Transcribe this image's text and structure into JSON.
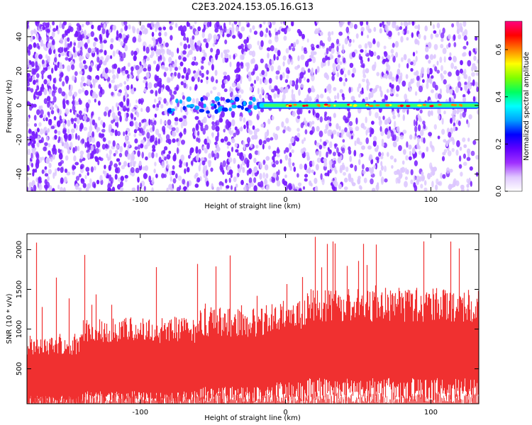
{
  "title": "C2E3.2024.153.05.16.G13",
  "chart_data": [
    {
      "type": "heatmap",
      "xlabel": "Height of straight line (km)",
      "ylabel": "Frequency (Hz)",
      "xlim": [
        -178,
        133
      ],
      "ylim": [
        -50,
        49
      ],
      "x_ticks": [
        -100,
        0,
        100
      ],
      "y_ticks": [
        -40,
        -20,
        0,
        20,
        40
      ],
      "colorbar": {
        "label": "Normalized spectral amplitude",
        "range": [
          0.0,
          0.72
        ],
        "ticks": [
          0.0,
          0.2,
          0.4,
          0.6
        ],
        "colors": [
          "#ffffff",
          "#e0c8ff",
          "#a030ff",
          "#6000ff",
          "#0000ff",
          "#00a0ff",
          "#00ffff",
          "#00ff60",
          "#80ff00",
          "#ffff00",
          "#ff8000",
          "#ff0000",
          "#ff0080"
        ]
      },
      "features": {
        "noise_color": "#7a1fff",
        "noise_density_left": 0.55,
        "noise_density_right": 0.12,
        "signal_line_frequency_hz": 0,
        "signal_line_start_km": -20,
        "signal_line_end_km": 133,
        "peak_amplitude": 0.7
      }
    },
    {
      "type": "area",
      "xlabel": "Height of straight line (km)",
      "ylabel": "SNR (10 * v/v)",
      "xlim": [
        -178,
        133
      ],
      "ylim": [
        60,
        2200
      ],
      "x_ticks": [
        -100,
        0,
        100
      ],
      "y_ticks": [
        500,
        1000,
        1500,
        2000
      ],
      "color": "#f03030",
      "segments": [
        {
          "x": [
            -178,
            -140
          ],
          "min": 150,
          "max": 900
        },
        {
          "x": [
            -140,
            -60
          ],
          "min": 200,
          "max": 1100
        },
        {
          "x": [
            -60,
            -10
          ],
          "min": 250,
          "max": 1200
        },
        {
          "x": [
            -10,
            15
          ],
          "min": 300,
          "max": 1300
        },
        {
          "x": [
            15,
            133
          ],
          "min": 350,
          "max": 1450
        }
      ],
      "max_spike": 2180
    }
  ]
}
